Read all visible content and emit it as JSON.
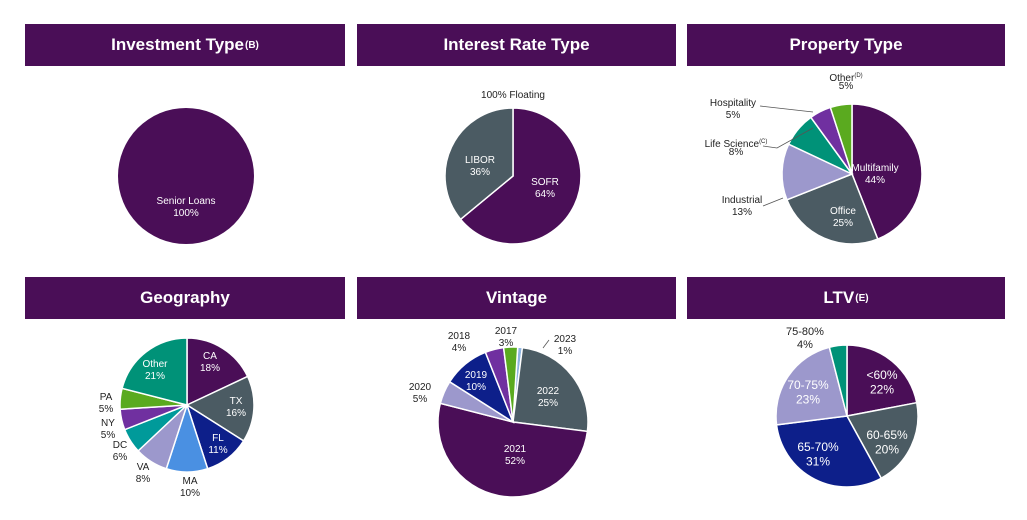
{
  "headers": {
    "investment_type": {
      "title": "Investment Type",
      "sup": "(B)"
    },
    "interest_rate_type": {
      "title": "Interest Rate Type",
      "sup": ""
    },
    "property_type": {
      "title": "Property Type",
      "sup": ""
    },
    "geography": {
      "title": "Geography",
      "sup": ""
    },
    "vintage": {
      "title": "Vintage",
      "sup": ""
    },
    "ltv": {
      "title": "LTV",
      "sup": "(E)"
    }
  },
  "chart_data": [
    {
      "type": "pie",
      "title": "Investment Type(B)",
      "categories": [
        "Senior Loans"
      ],
      "values": [
        100
      ],
      "labels": [
        [
          "Senior Loans",
          "100%"
        ]
      ],
      "colors": [
        "#4a0e57"
      ]
    },
    {
      "type": "pie",
      "title": "Interest Rate Type",
      "annotation": "100% Floating",
      "categories": [
        "SOFR",
        "LIBOR"
      ],
      "values": [
        64,
        36
      ],
      "labels": [
        [
          "SOFR",
          "64%"
        ],
        [
          "LIBOR",
          "36%"
        ]
      ],
      "colors": [
        "#4a0e57",
        "#4b5b63"
      ]
    },
    {
      "type": "pie",
      "title": "Property Type",
      "categories": [
        "Multifamily",
        "Office",
        "Industrial",
        "Life Science",
        "Hospitality",
        "Other"
      ],
      "values": [
        44,
        25,
        13,
        8,
        5,
        5
      ],
      "labels": [
        [
          "Multifamily",
          "44%"
        ],
        [
          "Office",
          "25%"
        ],
        [
          "Industrial",
          "13%"
        ],
        [
          "Life Science(C)",
          "8%"
        ],
        [
          "Hospitality",
          "5%"
        ],
        [
          "Other(D)",
          "5%"
        ]
      ],
      "colors": [
        "#4a0e57",
        "#4b5b63",
        "#9c98cc",
        "#009278",
        "#7030a0",
        "#5aaa1f"
      ]
    },
    {
      "type": "pie",
      "title": "Geography",
      "categories": [
        "CA",
        "TX",
        "FL",
        "MA",
        "VA",
        "DC",
        "NY",
        "PA",
        "Other"
      ],
      "values": [
        18,
        16,
        11,
        10,
        8,
        6,
        5,
        5,
        21
      ],
      "labels": [
        [
          "CA",
          "18%"
        ],
        [
          "TX",
          "16%"
        ],
        [
          "FL",
          "11%"
        ],
        [
          "MA",
          "10%"
        ],
        [
          "VA",
          "8%"
        ],
        [
          "DC",
          "6%"
        ],
        [
          "NY",
          "5%"
        ],
        [
          "PA",
          "5%"
        ],
        [
          "Other",
          "21%"
        ]
      ],
      "colors": [
        "#4a0e57",
        "#4b5b63",
        "#0d1f8a",
        "#4a90e2",
        "#9c98cc",
        "#009a9a",
        "#7030a0",
        "#5aaa1f",
        "#009278"
      ]
    },
    {
      "type": "pie",
      "title": "Vintage",
      "categories": [
        "2023",
        "2022",
        "2021",
        "2020",
        "2019",
        "2018",
        "2017"
      ],
      "values": [
        1,
        25,
        52,
        5,
        10,
        4,
        3
      ],
      "labels": [
        [
          "2023",
          "1%"
        ],
        [
          "2022",
          "25%"
        ],
        [
          "2021",
          "52%"
        ],
        [
          "2020",
          "5%"
        ],
        [
          "2019",
          "10%"
        ],
        [
          "2018",
          "4%"
        ],
        [
          "2017",
          "3%"
        ]
      ],
      "colors": [
        "#8fb4e0",
        "#4b5b63",
        "#4a0e57",
        "#9c98cc",
        "#0d1f8a",
        "#7030a0",
        "#5aaa1f"
      ]
    },
    {
      "type": "pie",
      "title": "LTV(E)",
      "categories": [
        "<60%",
        "60-65%",
        "65-70%",
        "70-75%",
        "75-80%"
      ],
      "values": [
        22,
        20,
        31,
        23,
        4
      ],
      "labels": [
        [
          "<60%",
          "22%"
        ],
        [
          "60-65%",
          "20%"
        ],
        [
          "65-70%",
          "31%"
        ],
        [
          "70-75%",
          "23%"
        ],
        [
          "75-80%",
          "4%"
        ]
      ],
      "colors": [
        "#4a0e57",
        "#4b5b63",
        "#0d1f8a",
        "#9c98cc",
        "#009278"
      ]
    }
  ]
}
